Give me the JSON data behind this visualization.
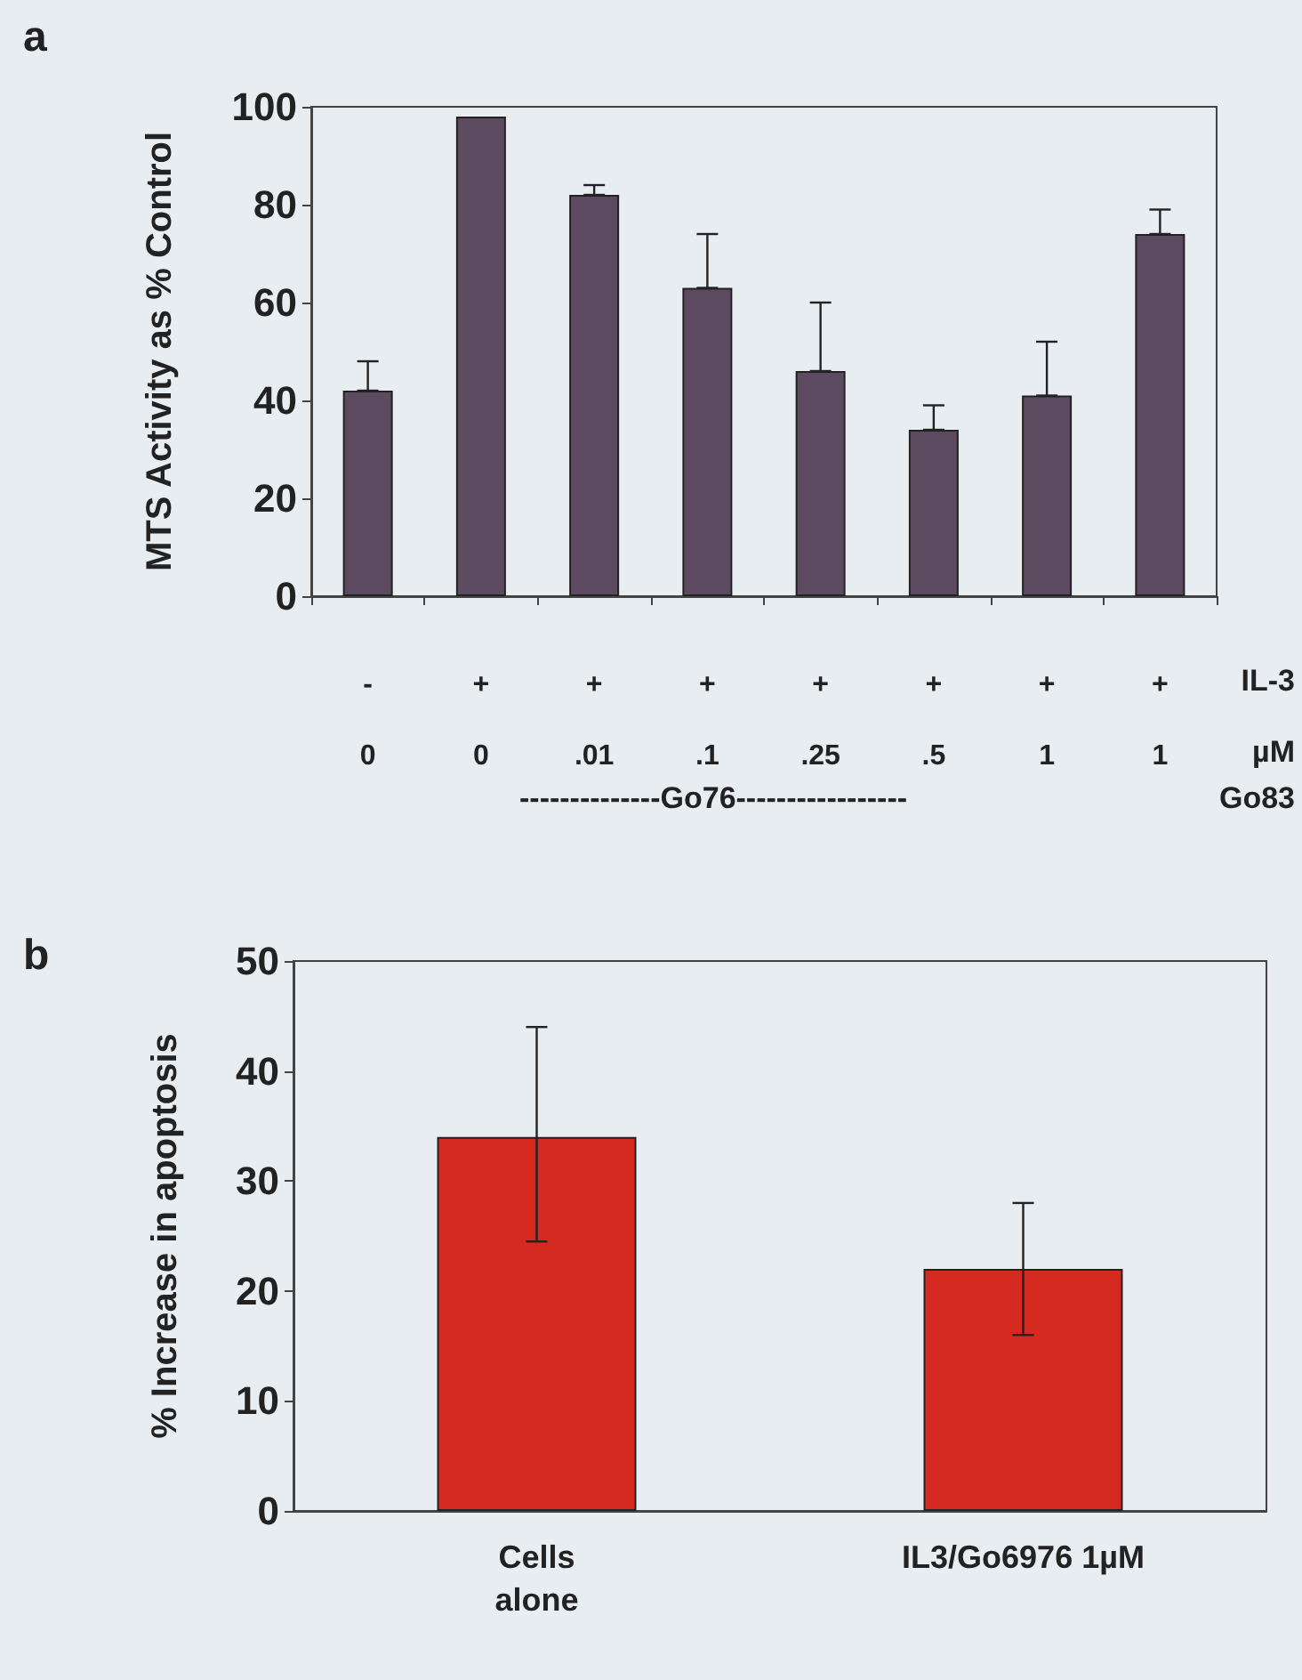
{
  "chart_data": [
    {
      "type": "bar",
      "title": "a",
      "ylabel": "MTS Activity as % Control",
      "categories": [
        "-\n0",
        "+\n0",
        "+\n.01",
        "+\n.1",
        "+\n.25",
        "+\n.5",
        "+\n1",
        "+\n1"
      ],
      "values": [
        42,
        98,
        82,
        63,
        46,
        34,
        41,
        74
      ],
      "errors": [
        [
          42,
          48
        ],
        null,
        [
          82,
          84
        ],
        [
          63,
          74
        ],
        [
          46,
          60
        ],
        [
          34,
          39
        ],
        [
          41,
          52
        ],
        [
          74,
          79
        ]
      ],
      "color": "#5c4b60",
      "ylim": [
        0,
        100
      ],
      "yticks": [
        0,
        20,
        40,
        60,
        80,
        100
      ],
      "grid": false,
      "annotations": [
        "IL-3",
        "µM",
        "--------------Go76-----------------",
        "Go83"
      ]
    },
    {
      "type": "bar",
      "title": "b",
      "ylabel": "% Increase in apoptosis",
      "categories": [
        "Cells\nalone",
        "IL3/Go6976 1µM"
      ],
      "values": [
        34,
        22
      ],
      "errors": [
        [
          24.5,
          44
        ],
        [
          16,
          28
        ]
      ],
      "color": "#d52a20",
      "ylim": [
        0,
        50
      ],
      "yticks": [
        0,
        10,
        20,
        30,
        40,
        50
      ],
      "grid": false
    }
  ]
}
